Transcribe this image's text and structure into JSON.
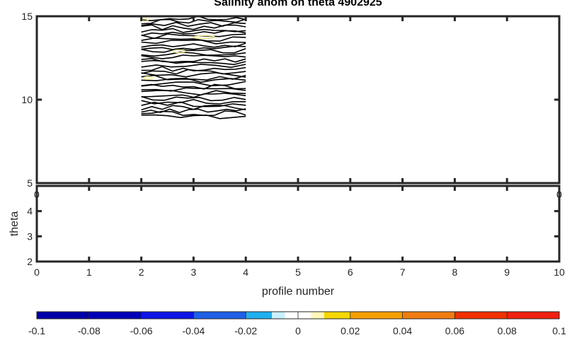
{
  "chart_data": [
    {
      "type": "contour",
      "title": "Salinity anom on theta    4902925",
      "xlabel": "",
      "ylabel": "",
      "xlim": [
        0,
        10
      ],
      "ylim": [
        5,
        15
      ],
      "xticks": [
        0,
        1,
        2,
        3,
        4,
        5,
        6,
        7,
        8,
        9,
        10
      ],
      "yticks": [
        "5",
        "10",
        "15"
      ],
      "ytick_values": [
        5,
        10,
        15
      ],
      "contour_extent": {
        "x": [
          2,
          4
        ],
        "theta": [
          8.9,
          15
        ]
      },
      "line_color": "#000000",
      "highlight_colors": [
        "#f2f28c",
        "#e6e68c"
      ],
      "visible_partial_tick_labels": {
        "left": "0",
        "right": "0"
      }
    },
    {
      "type": "line",
      "title": "",
      "xlabel": "profile number",
      "ylabel": "theta",
      "xlim": [
        0,
        10
      ],
      "ylim": [
        2,
        5
      ],
      "xticks": [
        "0",
        "1",
        "2",
        "3",
        "4",
        "5",
        "6",
        "7",
        "8",
        "9",
        "10"
      ],
      "xtick_values": [
        0,
        1,
        2,
        3,
        4,
        5,
        6,
        7,
        8,
        9,
        10
      ],
      "yticks": [
        "2",
        "3",
        "4"
      ],
      "ytick_values": [
        2,
        3,
        4
      ],
      "series": []
    },
    {
      "type": "colorbar",
      "orientation": "horizontal",
      "limits": [
        -0.1,
        0.1
      ],
      "tick_labels": [
        "-0.1",
        "-0.08",
        "-0.06",
        "-0.04",
        "-0.02",
        "0",
        "0.02",
        "0.04",
        "0.06",
        "0.08",
        "0.1"
      ],
      "tick_values": [
        -0.1,
        -0.08,
        -0.06,
        -0.04,
        -0.02,
        0,
        0.02,
        0.04,
        0.06,
        0.08,
        0.1
      ],
      "bins": [
        {
          "from": -0.1,
          "to": -0.08,
          "color": "#0000a8"
        },
        {
          "from": -0.08,
          "to": -0.06,
          "color": "#0000b8"
        },
        {
          "from": -0.06,
          "to": -0.04,
          "color": "#0d14e6"
        },
        {
          "from": -0.04,
          "to": -0.02,
          "color": "#1f5fe6"
        },
        {
          "from": -0.02,
          "to": -0.01,
          "color": "#20b0f0"
        },
        {
          "from": -0.01,
          "to": -0.005,
          "color": "#c8f0ff"
        },
        {
          "from": -0.005,
          "to": 0,
          "color": "#ffffff"
        },
        {
          "from": 0,
          "to": 0.005,
          "color": "#ffffff"
        },
        {
          "from": 0.005,
          "to": 0.01,
          "color": "#fff8b8"
        },
        {
          "from": 0.01,
          "to": 0.02,
          "color": "#f5d800"
        },
        {
          "from": 0.02,
          "to": 0.04,
          "color": "#f5a000"
        },
        {
          "from": 0.04,
          "to": 0.06,
          "color": "#f07c10"
        },
        {
          "from": 0.06,
          "to": 0.08,
          "color": "#f23000"
        },
        {
          "from": 0.08,
          "to": 0.1,
          "color": "#f02010"
        }
      ]
    }
  ]
}
